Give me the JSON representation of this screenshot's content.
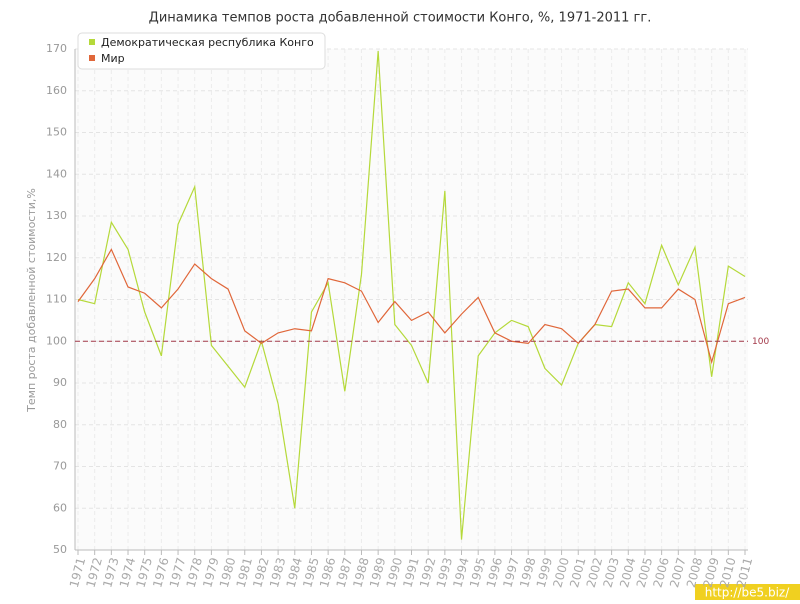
{
  "chart_data": {
    "type": "line",
    "title": "Динамика темпов роста добавленной стоимости Конго, %, 1971-2011 гг.",
    "y_label": "Темп роста добавленной стоимости,%",
    "categories": [
      "1971",
      "1972",
      "1973",
      "1974",
      "1975",
      "1976",
      "1977",
      "1978",
      "1979",
      "1980",
      "1981",
      "1982",
      "1983",
      "1984",
      "1985",
      "1986",
      "1987",
      "1988",
      "1989",
      "1990",
      "1991",
      "1992",
      "1993",
      "1994",
      "1995",
      "1996",
      "1997",
      "1998",
      "1999",
      "2000",
      "2001",
      "2002",
      "2003",
      "2004",
      "2005",
      "2006",
      "2007",
      "2008",
      "2009",
      "2010",
      "2011"
    ],
    "series": [
      {
        "name": "Демократическая республика Конго",
        "color": "#b5d93a",
        "values": [
          110,
          109,
          128.5,
          122,
          107,
          96.5,
          128,
          137,
          99,
          94,
          89,
          100,
          85,
          60,
          107,
          114,
          88,
          116,
          169.5,
          104,
          99,
          90,
          136,
          52.5,
          96.5,
          102,
          105,
          103.5,
          93.5,
          89.5,
          99.5,
          104,
          103.5,
          114,
          109,
          123,
          113.5,
          122.5,
          91.5,
          118,
          115.5
        ]
      },
      {
        "name": "Мир",
        "color": "#e0673a",
        "values": [
          109.5,
          115,
          122,
          113,
          111.5,
          108,
          112.5,
          118.5,
          115,
          112.5,
          102.5,
          99.5,
          102,
          103,
          102.5,
          115,
          114,
          112,
          104.5,
          109.5,
          105,
          107,
          102,
          106.5,
          110.5,
          102,
          100,
          99.5,
          104,
          103,
          99.5,
          104,
          112,
          112.5,
          108,
          108,
          112.5,
          110,
          95,
          109,
          110.5
        ]
      }
    ],
    "ylim": [
      50,
      170
    ],
    "yticks": [
      50,
      60,
      70,
      80,
      90,
      100,
      110,
      120,
      130,
      140,
      150,
      160,
      170
    ],
    "grid": true,
    "reference_line": 100,
    "legend": "top-left",
    "watermark": "http://be5.biz/"
  }
}
